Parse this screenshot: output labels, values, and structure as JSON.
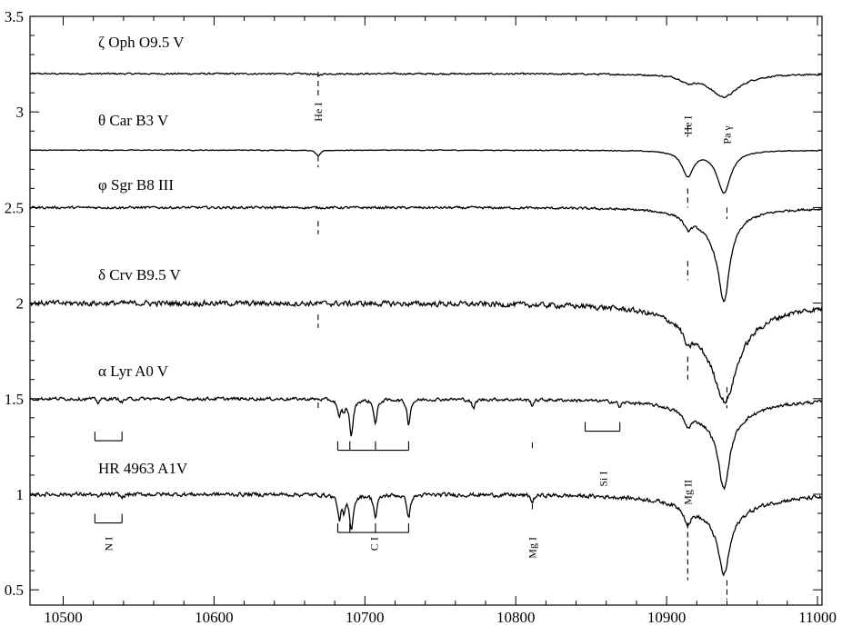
{
  "chart_data": {
    "type": "line",
    "title": "",
    "xlabel": "",
    "ylabel": "",
    "xlim": [
      10478,
      11003
    ],
    "ylim": [
      0.42,
      3.5
    ],
    "grid": false,
    "x_ticks": [
      10500,
      10600,
      10700,
      10800,
      10900,
      11000
    ],
    "y_ticks": [
      0.5,
      1,
      1.5,
      2,
      2.5,
      3,
      3.5
    ],
    "x_tick_labels": [
      "10500",
      "10600",
      "10700",
      "10800",
      "10900",
      "11000"
    ],
    "y_tick_labels": [
      "0.5",
      "1",
      "1.5",
      "2",
      "2.5",
      "3",
      "3.5"
    ],
    "series": [
      {
        "name": "ζ Oph",
        "spectral_type": "O9.5 V",
        "continuum": 3.2,
        "noise": 0.006,
        "lines": [
          {
            "center": 10669,
            "depth": 0.01,
            "width": 1.5
          },
          {
            "center": 10914,
            "depth": 0.03,
            "width": 5
          },
          {
            "center": 10938,
            "depth": 0.12,
            "width": 12
          }
        ]
      },
      {
        "name": "θ Car",
        "spectral_type": "B3 V",
        "continuum": 2.8,
        "noise": 0.003,
        "lines": [
          {
            "center": 10669,
            "depth": 0.03,
            "width": 1.8
          },
          {
            "center": 10914,
            "depth": 0.13,
            "width": 4.5
          },
          {
            "center": 10938,
            "depth": 0.22,
            "width": 5.5
          }
        ]
      },
      {
        "name": "φ Sgr",
        "spectral_type": "B8 III",
        "continuum": 2.5,
        "noise": 0.009,
        "lines": [
          {
            "center": 10914,
            "depth": 0.06,
            "width": 3
          },
          {
            "center": 10938,
            "depth": 0.38,
            "width": 4.5
          },
          {
            "center": 10933,
            "depth": 0.12,
            "width": 16
          }
        ]
      },
      {
        "name": "δ Crv",
        "spectral_type": "B9.5 V",
        "continuum": 2.0,
        "noise": 0.02,
        "lines": [
          {
            "center": 10914,
            "depth": 0.08,
            "width": 3
          },
          {
            "center": 10939,
            "depth": 0.3,
            "width": 8
          },
          {
            "center": 10935,
            "depth": 0.22,
            "width": 24
          }
        ]
      },
      {
        "name": "α Lyr",
        "spectral_type": "A0 V",
        "continuum": 1.5,
        "noise": 0.012,
        "lines": [
          {
            "center": 10523,
            "depth": 0.02,
            "width": 1
          },
          {
            "center": 10539,
            "depth": 0.02,
            "width": 1
          },
          {
            "center": 10683,
            "depth": 0.09,
            "width": 1.2
          },
          {
            "center": 10686,
            "depth": 0.05,
            "width": 1.2
          },
          {
            "center": 10691,
            "depth": 0.19,
            "width": 1.4
          },
          {
            "center": 10707,
            "depth": 0.13,
            "width": 1.3
          },
          {
            "center": 10729,
            "depth": 0.13,
            "width": 1.3
          },
          {
            "center": 10772,
            "depth": 0.05,
            "width": 1.2
          },
          {
            "center": 10811,
            "depth": 0.03,
            "width": 1
          },
          {
            "center": 10869,
            "depth": 0.03,
            "width": 1
          },
          {
            "center": 10914,
            "depth": 0.07,
            "width": 3
          },
          {
            "center": 10938,
            "depth": 0.35,
            "width": 4.5
          },
          {
            "center": 10935,
            "depth": 0.12,
            "width": 25
          }
        ]
      },
      {
        "name": "HR 4963",
        "spectral_type": "A1V",
        "continuum": 1.0,
        "noise": 0.015,
        "lines": [
          {
            "center": 10523,
            "depth": 0.02,
            "width": 1
          },
          {
            "center": 10539,
            "depth": 0.02,
            "width": 1
          },
          {
            "center": 10683,
            "depth": 0.12,
            "width": 1.2
          },
          {
            "center": 10686,
            "depth": 0.08,
            "width": 1.2
          },
          {
            "center": 10691,
            "depth": 0.18,
            "width": 1.4
          },
          {
            "center": 10707,
            "depth": 0.12,
            "width": 1.3
          },
          {
            "center": 10729,
            "depth": 0.12,
            "width": 1.3
          },
          {
            "center": 10811,
            "depth": 0.04,
            "width": 1
          },
          {
            "center": 10914,
            "depth": 0.08,
            "width": 2.5
          },
          {
            "center": 10938,
            "depth": 0.3,
            "width": 4.5
          },
          {
            "center": 10935,
            "depth": 0.12,
            "width": 25
          }
        ]
      }
    ],
    "annotations": [
      {
        "text": "He I",
        "x": 10669,
        "y": 3.0
      },
      {
        "text": "He I",
        "x": 10914,
        "y": 2.93
      },
      {
        "text": "Pa γ",
        "x": 10940,
        "y": 2.88
      },
      {
        "text": "Si I",
        "x": 10858,
        "y": 1.08
      },
      {
        "text": "Mg II",
        "x": 10914,
        "y": 1.01
      },
      {
        "text": "N I",
        "x": 10530,
        "y": 0.74
      },
      {
        "text": "C I",
        "x": 10706,
        "y": 0.74
      },
      {
        "text": "Mg I",
        "x": 10811,
        "y": 0.72
      }
    ],
    "marker_lines": [
      {
        "x": 10669,
        "ranges": [
          [
            3.07,
            3.21
          ],
          [
            2.71,
            2.77
          ],
          [
            2.36,
            2.43
          ],
          [
            1.87,
            1.94
          ],
          [
            1.45,
            1.48
          ]
        ]
      },
      {
        "x": 10914,
        "ranges": [
          [
            2.87,
            2.93
          ],
          [
            2.5,
            2.6
          ],
          [
            2.12,
            2.22
          ],
          [
            1.6,
            1.72
          ],
          [
            0.55,
            0.85
          ]
        ]
      },
      {
        "x": 10940,
        "ranges": [
          [
            2.44,
            2.5
          ],
          [
            1.45,
            1.56
          ],
          [
            0.45,
            0.55
          ]
        ]
      },
      {
        "x": 10811,
        "ranges": [
          [
            1.23,
            1.27
          ],
          [
            0.91,
            0.95
          ]
        ]
      }
    ],
    "brackets": [
      {
        "label": "N I",
        "row_y": [
          1.28,
          0.85
        ],
        "from": 10521,
        "to": 10539,
        "ticks": [
          10521,
          10539
        ]
      },
      {
        "label": "C I",
        "row_y": [
          1.23,
          0.8
        ],
        "from": 10682,
        "to": 10729,
        "ticks": [
          10682,
          10690,
          10707,
          10729
        ]
      },
      {
        "label": "Si I",
        "row_y": [
          1.33
        ],
        "from": 10846,
        "to": 10869,
        "ticks": [
          10846,
          10869
        ]
      }
    ]
  }
}
